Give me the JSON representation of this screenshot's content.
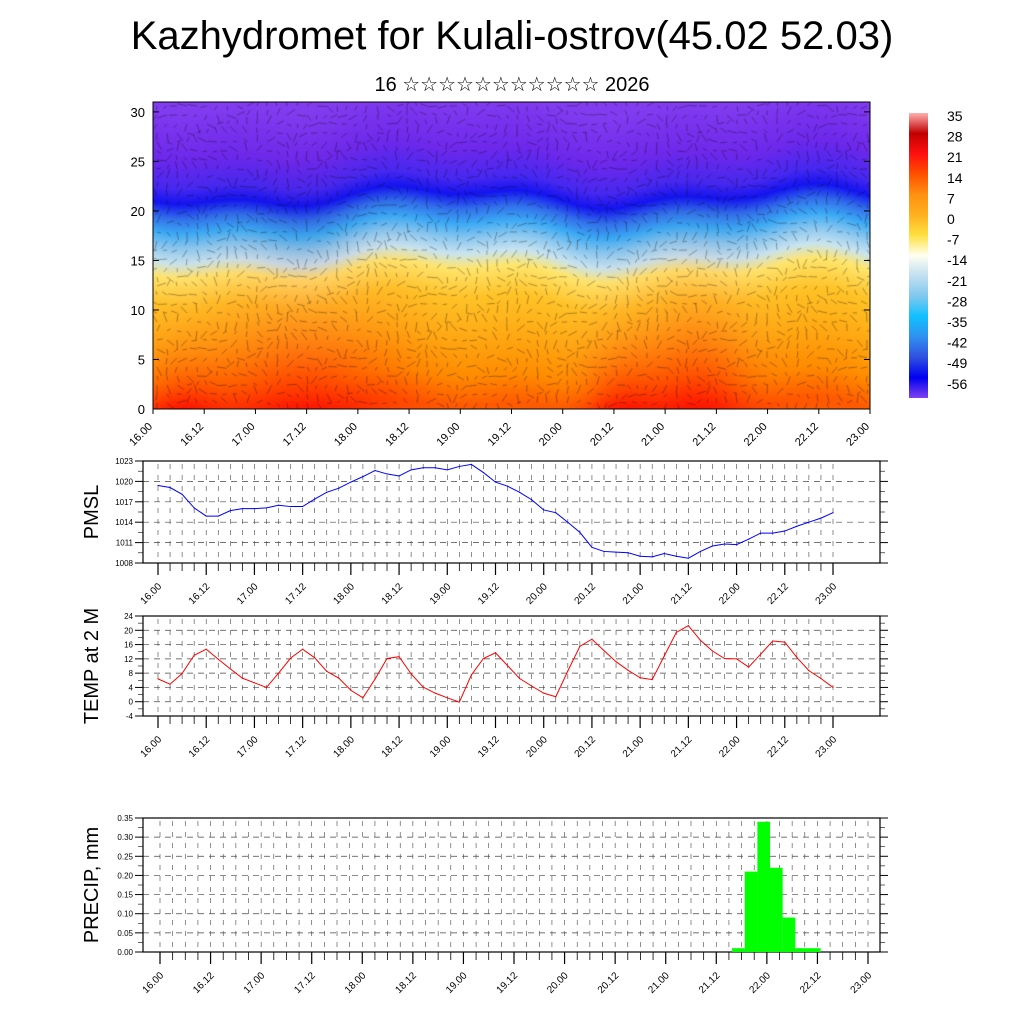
{
  "title": "Kazhydromet for Kulali-ostrov(45.02 52.03)",
  "subtitle": "16 ☆☆☆☆☆☆☆☆☆☆☆ 2026",
  "time_labels": [
    "16.00",
    "16.12",
    "17.00",
    "17.12",
    "18.00",
    "18.12",
    "19.00",
    "19.12",
    "20.00",
    "20.12",
    "21.00",
    "21.12",
    "22.00",
    "22.12",
    "23.00"
  ],
  "chart_data": [
    {
      "type": "heatmap",
      "title": "Temperature cross-section with wind",
      "ylabel": "",
      "yticks": [
        "0",
        "5",
        "10",
        "15",
        "20",
        "25",
        "30"
      ],
      "ylim": [
        0,
        31
      ],
      "colorbar": {
        "labels": [
          "35",
          "28",
          "21",
          "14",
          "7",
          "0",
          "-7",
          "-14",
          "-21",
          "-28",
          "-35",
          "-42",
          "-49",
          "-56"
        ],
        "colors": [
          "#ffb0b0",
          "#c00000",
          "#ff1010",
          "#ff5000",
          "#ff9010",
          "#ffb020",
          "#ffe040",
          "#fffff0",
          "#c0e0f0",
          "#80c8ee",
          "#10c0ff",
          "#3090f0",
          "#3050e0",
          "#0000f0",
          "#8040f0"
        ]
      }
    },
    {
      "type": "line",
      "ylabel": "PMSL",
      "ylim": [
        1008,
        1023
      ],
      "yticks": [
        "1008",
        "1011",
        "1014",
        "1017",
        "1020",
        "1023"
      ],
      "color": "#0000ff",
      "interval_hours": 3,
      "values": [
        1019.4,
        1019.1,
        1018.1,
        1016.1,
        1014.9,
        1014.9,
        1015.7,
        1016.0,
        1016.0,
        1016.1,
        1016.5,
        1016.3,
        1016.3,
        1017.4,
        1018.4,
        1019.0,
        1019.9,
        1020.7,
        1021.6,
        1021.1,
        1020.8,
        1021.7,
        1022.0,
        1022.0,
        1021.7,
        1022.2,
        1022.5,
        1021.3,
        1019.9,
        1019.3,
        1018.4,
        1017.3,
        1015.8,
        1015.4,
        1014.0,
        1012.5,
        1010.3,
        1009.7,
        1009.6,
        1009.5,
        1009.0,
        1008.9,
        1009.4,
        1009.0,
        1008.7,
        1009.7,
        1010.5,
        1010.8,
        1010.7,
        1011.5,
        1012.4,
        1012.4,
        1012.7,
        1013.4,
        1014.0,
        1014.6,
        1015.4
      ]
    },
    {
      "type": "line",
      "ylabel": "TEMP at 2 M",
      "ylim": [
        -4,
        24
      ],
      "yticks": [
        "-4",
        "0",
        "4",
        "8",
        "12",
        "16",
        "20",
        "24"
      ],
      "color": "#ff0000",
      "interval_hours": 3,
      "values": [
        6.4,
        4.9,
        7.9,
        13.0,
        14.7,
        11.9,
        9.2,
        6.6,
        5.3,
        4.0,
        8.0,
        12.2,
        14.7,
        12.3,
        8.5,
        6.6,
        3.2,
        1.1,
        6.3,
        12.1,
        12.6,
        7.8,
        4.1,
        2.4,
        1.1,
        -0.1,
        7.5,
        12.1,
        13.7,
        10.1,
        6.5,
        4.4,
        2.4,
        1.4,
        8.6,
        15.5,
        17.5,
        14.3,
        11.2,
        8.8,
        6.7,
        6.2,
        12.8,
        19.4,
        21.3,
        17.2,
        14.2,
        12.1,
        12.0,
        9.7,
        13.3,
        17.0,
        16.7,
        12.4,
        8.7,
        6.5,
        4.0
      ]
    },
    {
      "type": "bar",
      "ylabel": "PRECIP, mm",
      "ylim": [
        0,
        0.35
      ],
      "yticks": [
        "0.00",
        "0.05",
        "0.10",
        "0.15",
        "0.20",
        "0.25",
        "0.30",
        "0.35"
      ],
      "color": "#00ff00",
      "interval_hours": 3,
      "bars": [
        {
          "step": 46,
          "value": 0.01
        },
        {
          "step": 47,
          "value": 0.21
        },
        {
          "step": 48,
          "value": 0.34
        },
        {
          "step": 49,
          "value": 0.22
        },
        {
          "step": 50,
          "value": 0.09
        },
        {
          "step": 51,
          "value": 0.01
        },
        {
          "step": 52,
          "value": 0.01
        }
      ]
    }
  ]
}
